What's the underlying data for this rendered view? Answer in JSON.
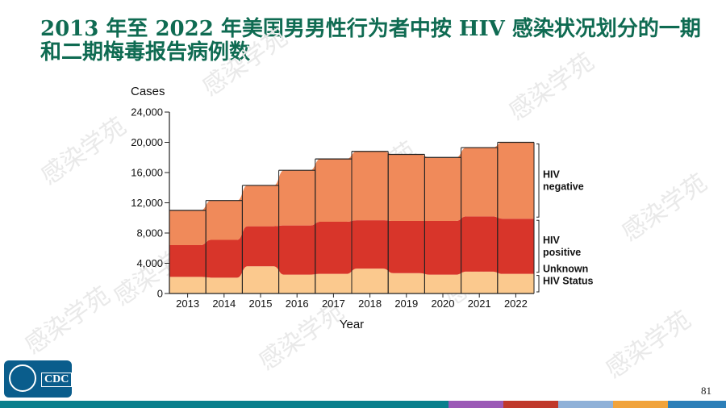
{
  "slide": {
    "title": "2013 年至 2022 年美国男男性行为者中按 HIV 感染状况划分的一期和二期梅毒报告病例数",
    "page_number": "81",
    "logo_text": "CDC",
    "watermark_text": "感染学苑"
  },
  "colors": {
    "title": "#0f6b52",
    "hiv_negative": "#f08a5a",
    "hiv_positive": "#d8352a",
    "unknown": "#fbc98e",
    "footer": [
      "#0a7f8c",
      "#9b59b6",
      "#c0392b",
      "#8fb1d8",
      "#f1a33b",
      "#2c7fb8"
    ]
  },
  "chart_data": {
    "type": "area",
    "stacked": true,
    "ylabel": "Cases",
    "xlabel": "Year",
    "ylim": [
      0,
      24000
    ],
    "yticks": [
      0,
      4000,
      8000,
      12000,
      16000,
      20000,
      24000
    ],
    "ytick_labels": [
      "0",
      "4,000",
      "8,000",
      "12,000",
      "16,000",
      "20,000",
      "24,000"
    ],
    "categories": [
      "2013",
      "2014",
      "2015",
      "2016",
      "2017",
      "2018",
      "2019",
      "2020",
      "2021",
      "2022"
    ],
    "series": [
      {
        "name": "Unknown HIV Status",
        "label_lines": [
          "Unknown",
          "HIV Status"
        ],
        "values": [
          2200,
          2100,
          3600,
          2500,
          2600,
          3300,
          2700,
          2500,
          2900,
          2600
        ]
      },
      {
        "name": "HIV positive",
        "label_lines": [
          "HIV",
          "positive"
        ],
        "values": [
          4200,
          5000,
          5300,
          6500,
          6900,
          6400,
          6900,
          7100,
          7300,
          7300
        ]
      },
      {
        "name": "HIV negative",
        "label_lines": [
          "HIV",
          "negative"
        ],
        "values": [
          4600,
          5200,
          5400,
          7300,
          8300,
          9100,
          8800,
          8400,
          9100,
          10100
        ]
      }
    ]
  }
}
